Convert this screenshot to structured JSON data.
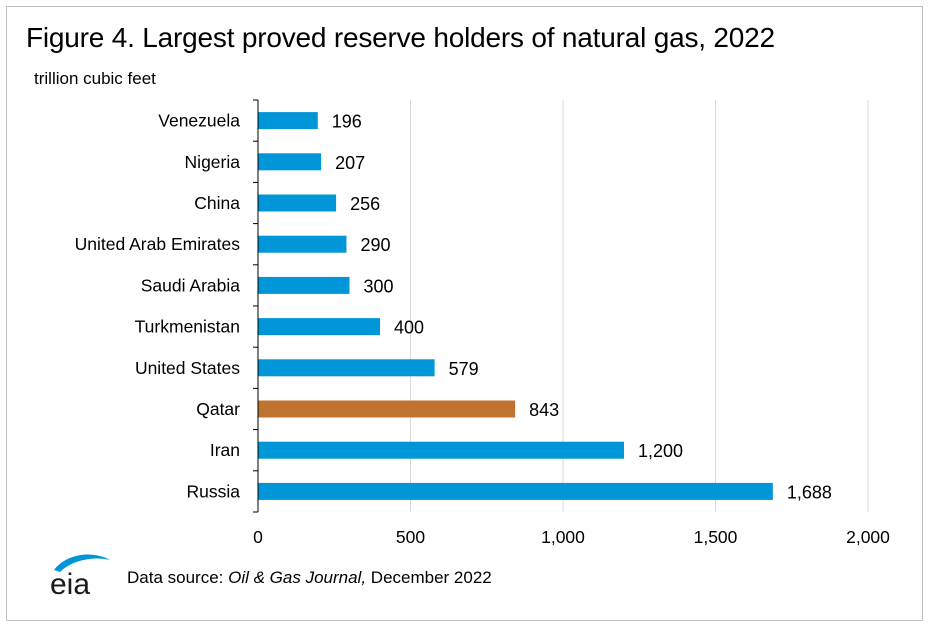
{
  "title": "Figure 4. Largest proved reserve holders of natural gas, 2022",
  "unit_label": "trillion cubic feet",
  "footer": {
    "prefix": "Data source: ",
    "source": "Oil & Gas Journal,",
    "suffix": " December 2022"
  },
  "logo": {
    "text": "eia"
  },
  "colors": {
    "bar": "#0096d7",
    "highlight": "#c0722f",
    "grid": "#d9d9d9",
    "axis": "#000000"
  },
  "chart_data": {
    "type": "bar",
    "orientation": "horizontal",
    "title": "Figure 4. Largest proved reserve holders of natural gas, 2022",
    "xlabel": "",
    "ylabel": "trillion cubic feet",
    "xlim": [
      0,
      2000
    ],
    "x_ticks": [
      0,
      500,
      1000,
      1500,
      2000
    ],
    "x_tick_labels": [
      "0",
      "500",
      "1,000",
      "1,500",
      "2,000"
    ],
    "grid": true,
    "categories": [
      "Venezuela",
      "Nigeria",
      "China",
      "United Arab Emirates",
      "Saudi Arabia",
      "Turkmenistan",
      "United States",
      "Qatar",
      "Iran",
      "Russia"
    ],
    "values": [
      196,
      207,
      256,
      290,
      300,
      400,
      579,
      843,
      1200,
      1688
    ],
    "value_labels": [
      "196",
      "207",
      "256",
      "290",
      "300",
      "400",
      "579",
      "843",
      "1,200",
      "1,688"
    ],
    "highlight": "Qatar"
  }
}
